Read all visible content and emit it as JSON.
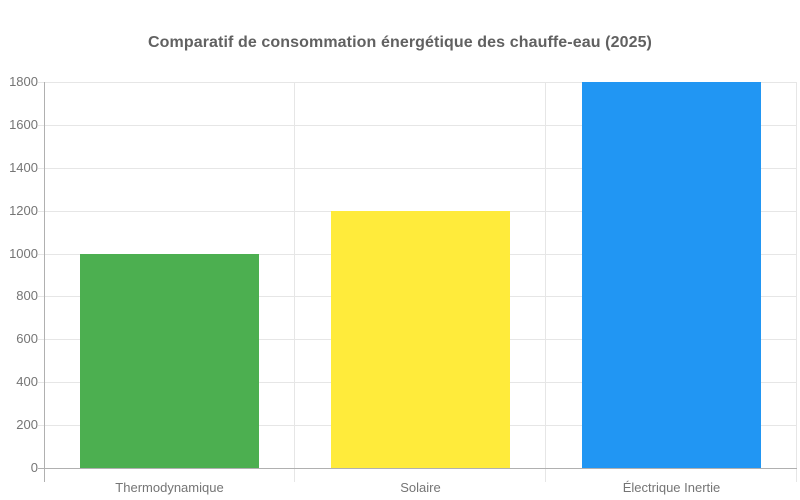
{
  "chart_data": {
    "type": "bar",
    "title": "Comparatif de consommation énergétique des chauffe-eau (2025)",
    "categories": [
      "Thermodynamique",
      "Solaire",
      "Électrique Inertie"
    ],
    "values": [
      1000,
      1200,
      1800
    ],
    "bar_colors": [
      "#4caf50",
      "#ffeb3b",
      "#2196f3"
    ],
    "xlabel": "",
    "ylabel": "",
    "ylim": [
      0,
      1800
    ],
    "ytick_step": 200,
    "yticks": [
      0,
      200,
      400,
      600,
      800,
      1000,
      1200,
      1400,
      1600,
      1800
    ],
    "grid": true,
    "legend": "none",
    "colors": {
      "title": "#616161",
      "axis_labels": "#757575",
      "gridline": "#e6e6e6",
      "axis_line": "#b0b0b0",
      "background": "#ffffff"
    }
  }
}
